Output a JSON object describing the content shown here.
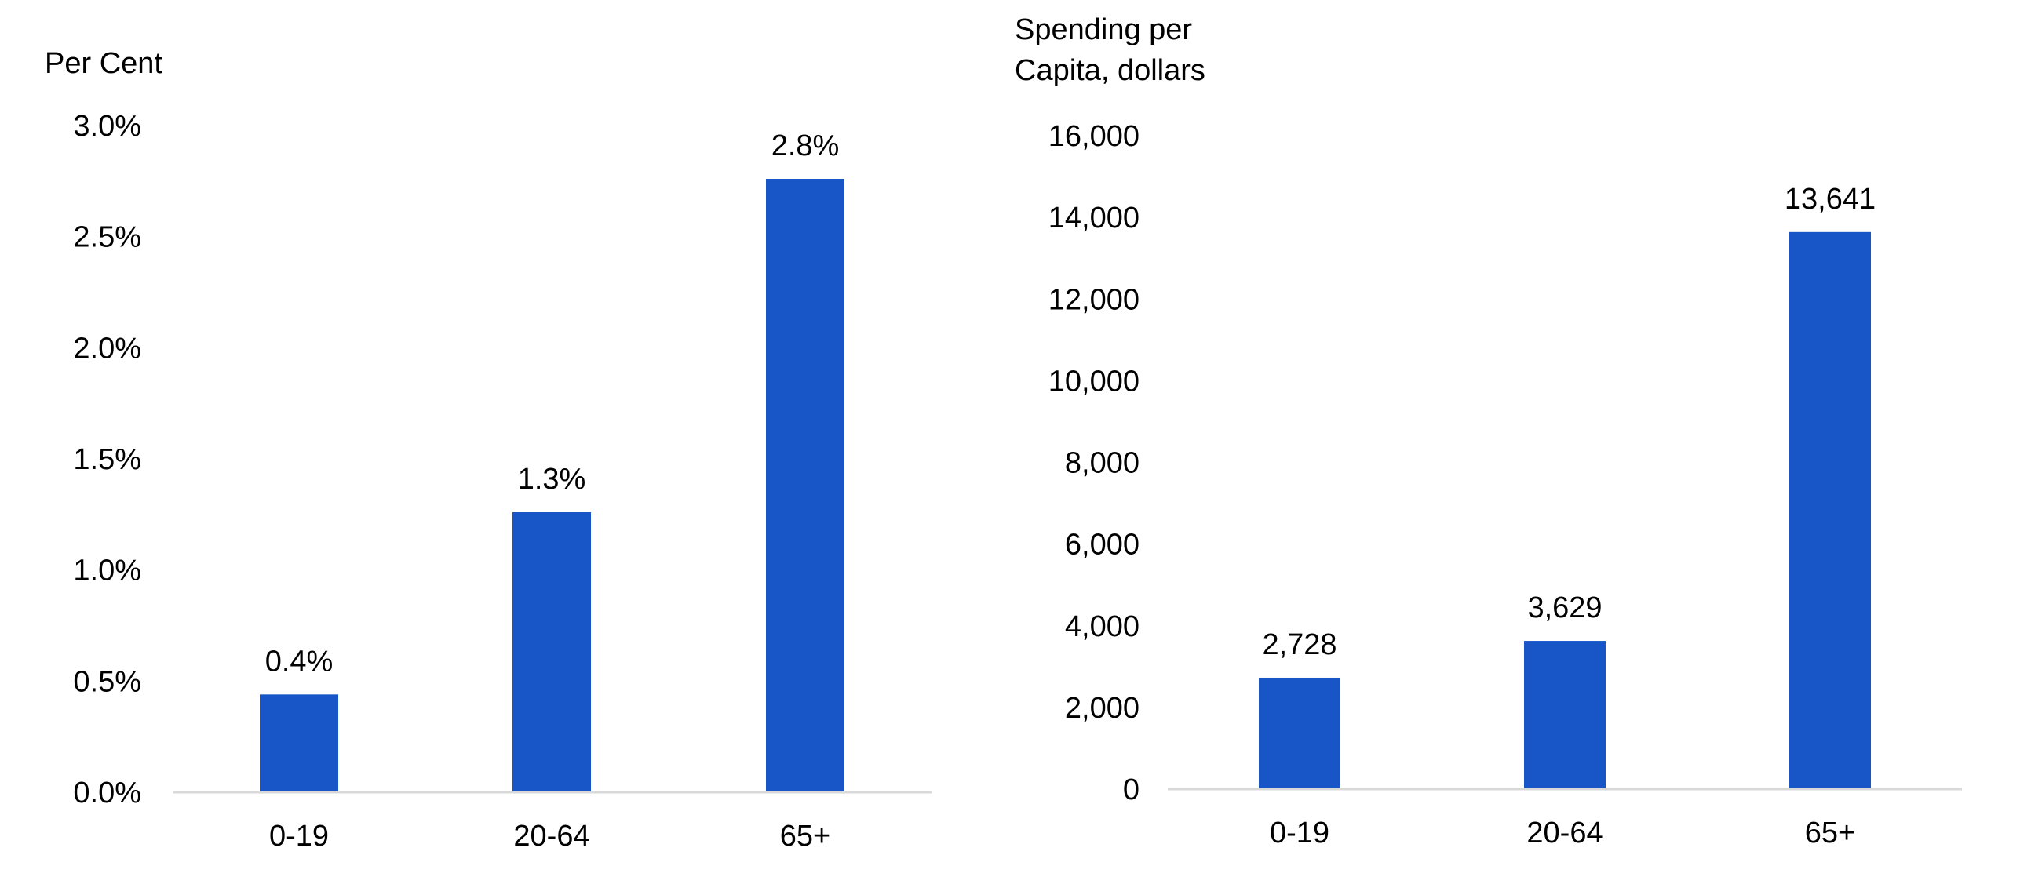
{
  "chart_data": [
    {
      "type": "bar",
      "ylabel_lines": [
        "Per Cent"
      ],
      "categories": [
        "0-19",
        "20-64",
        "65+"
      ],
      "values": [
        0.44,
        1.26,
        2.76
      ],
      "data_labels": [
        "0.4%",
        "1.3%",
        "2.8%"
      ],
      "ylim": [
        0,
        3
      ],
      "yticks": [
        0,
        0.5,
        1.0,
        1.5,
        2.0,
        2.5,
        3.0
      ],
      "ytick_labels": [
        "0.0%",
        "0.5%",
        "1.0%",
        "1.5%",
        "2.0%",
        "2.5%",
        "3.0%"
      ],
      "grid": false,
      "bar_color": "#1856c8"
    },
    {
      "type": "bar",
      "ylabel_lines": [
        "Spending per",
        "Capita, dollars"
      ],
      "categories": [
        "0-19",
        "20-64",
        "65+"
      ],
      "values": [
        2728,
        3629,
        13641
      ],
      "data_labels": [
        "2,728",
        "3,629",
        "13,641"
      ],
      "ylim": [
        0,
        16000
      ],
      "yticks": [
        0,
        2000,
        4000,
        6000,
        8000,
        10000,
        12000,
        14000,
        16000
      ],
      "ytick_labels": [
        "0",
        "2,000",
        "4,000",
        "6,000",
        "8,000",
        "10,000",
        "12,000",
        "14,000",
        "16,000"
      ],
      "grid": false,
      "bar_color": "#1856c8"
    }
  ]
}
